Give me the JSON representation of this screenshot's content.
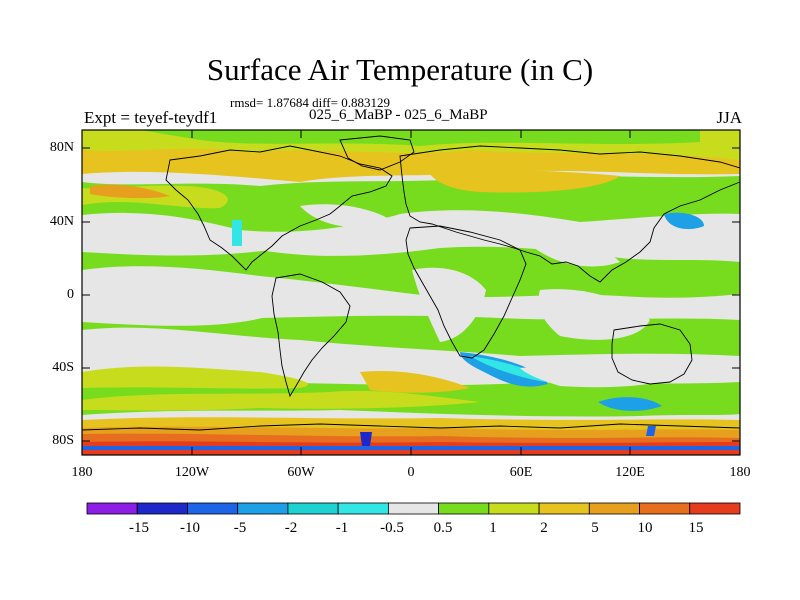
{
  "figure": {
    "title": "Surface Air Temperature (in C)",
    "stats_line": "rmsd= 1.87684 diff= 0.883129",
    "comparison": "025_6_MaBP - 025_6_MaBP",
    "left_string": "Expt = teyef-teydf1",
    "right_string": "JJA"
  },
  "axes": {
    "lat_ticks": [
      "80N",
      "40N",
      "0",
      "40S",
      "80S"
    ],
    "lon_ticks": [
      "180",
      "120W",
      "60W",
      "0",
      "60E",
      "120E",
      "180"
    ]
  },
  "colorbar": {
    "colors": [
      "#8c1ee6",
      "#1e28c8",
      "#1e64e6",
      "#1ea0e6",
      "#1ed2d2",
      "#32e6e6",
      "#e6e6e6",
      "#78dc1e",
      "#c8dc1e",
      "#e6c31e",
      "#e6a01e",
      "#e66e1e",
      "#e63c1e"
    ],
    "labels": [
      "-15",
      "-10",
      "-5",
      "-2",
      "-1",
      "-0.5",
      "0.5",
      "1",
      "2",
      "5",
      "10",
      "15"
    ]
  },
  "field_colors": {
    "neutral": "#e6e6e6",
    "light_warm": "#78dc1e",
    "warm": "#c8dc1e",
    "warmer": "#e6c31e",
    "hot": "#e6a01e",
    "hotter": "#e66e1e",
    "hottest": "#e63c1e",
    "cool": "#1ea0e6",
    "cold": "#1e64e6",
    "coldest": "#1e28c8",
    "cyan": "#32e6e6"
  }
}
